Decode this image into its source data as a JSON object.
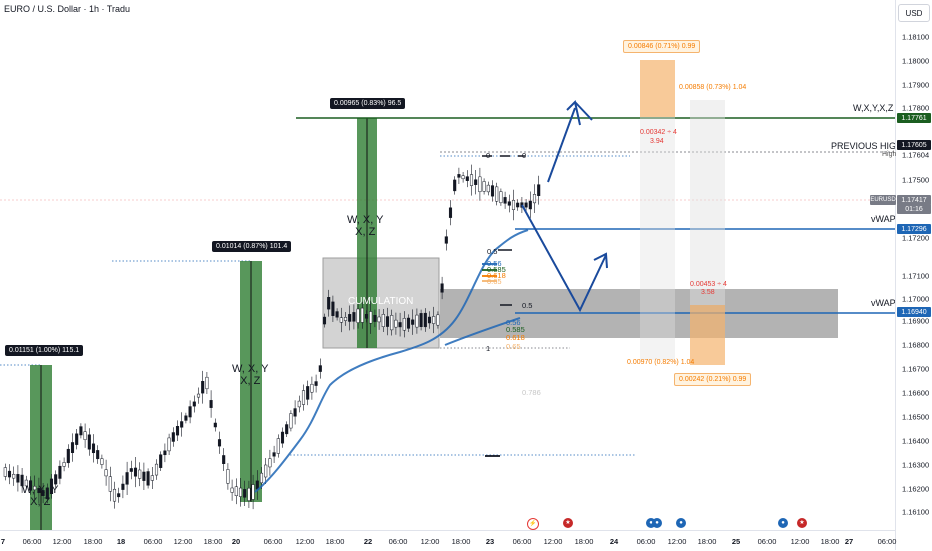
{
  "title": "EURO / U.S. Dollar · 1h · Tradu",
  "currency_button": "USD",
  "price_axis": {
    "ticks": [
      "1.18100",
      "1.18000",
      "1.17900",
      "1.17800",
      "1.17604",
      "1.17500",
      "1.17200",
      "1.17100",
      "1.17000",
      "1.16900",
      "1.16800",
      "1.16700",
      "1.16600",
      "1.16500",
      "1.16400",
      "1.16300",
      "1.16200",
      "1.16100"
    ],
    "high_label": "High",
    "tags": {
      "wxyz_level": "1.17761",
      "previous_high": "1.17605",
      "symbol": "EURUSD",
      "last_price": "1.17417",
      "countdown": "01:16",
      "vwap_upper": "1.17296",
      "vwap_lower": "1.16940"
    }
  },
  "time_axis": [
    "7",
    "06:00",
    "12:00",
    "18:00",
    "18",
    "06:00",
    "12:00",
    "18:00",
    "20",
    "06:00",
    "12:00",
    "18:00",
    "22",
    "06:00",
    "12:00",
    "18:00",
    "23",
    "06:00",
    "12:00",
    "18:00",
    "24",
    "06:00",
    "12:00",
    "18:00",
    "25",
    "06:00",
    "12:00",
    "18:00",
    "27",
    "06:00"
  ],
  "annotations": {
    "wxyz_line_label": "W,X,Y,X,Z",
    "previous_high_label": "PREVIOUS HIGH",
    "vwap_upper_label": "vWAP",
    "vwap_lower_label": "vWAP",
    "accumulation_label": "CUMULATION",
    "wave_labels": [
      "W, X, Y\nX, Z",
      "W, X, Y\nX, Z",
      "W, X, Y\nX, Z"
    ]
  },
  "measurements": {
    "m1": "0.01151 (1.00%) 115.1",
    "m2": "0.01014 (0.87%) 101.4",
    "m3": "0.00965 (0.83%) 96.5",
    "orange_top": "0.00846 (0.71%) 0.99",
    "upper_target": "0.00858 (0.73%) 1.04",
    "upper_rr_1": "0.00342 ÷ 4",
    "upper_rr_2": "3.94",
    "lower_rr_1": "0.00453 ÷ 4",
    "lower_rr_2": "3.58",
    "lower_target": "0.00970 (0.82%) 1.04",
    "orange_bottom": "0.00242 (0.21%) 0.99"
  },
  "fib_upper": [
    "0",
    "0",
    "0.5",
    "0.56",
    "0.585",
    "0.618",
    "0.65"
  ],
  "fib_lower": [
    "0.5",
    "0.56",
    "0.585",
    "0.618",
    "0.65",
    "1",
    "0.786"
  ],
  "colors": {
    "green_measure": "#2e7d32",
    "accumulation_box": "#9e9e9e",
    "vwap_line": "#1e66b5",
    "wxyz_line": "#1b5e20",
    "arrow": "#1a4a9c",
    "orange_zone": "#f5b46e",
    "candle_up": "#ffffff",
    "candle_down": "#131722"
  }
}
